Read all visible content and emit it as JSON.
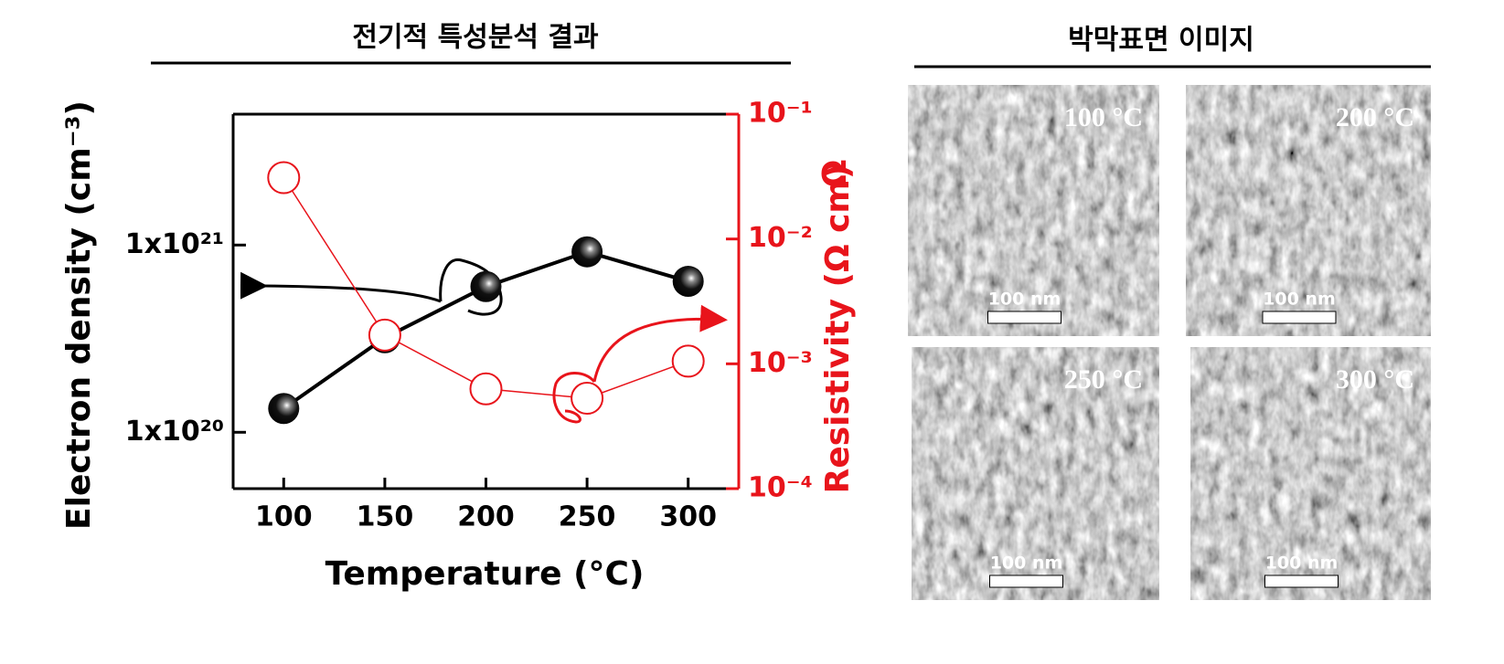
{
  "chart_data": {
    "type": "line",
    "title": "전기적 특성분석 결과",
    "x": [
      100,
      150,
      200,
      250,
      300
    ],
    "xlabel": "Temperature (°C)",
    "ylabel": "Electron density (cm⁻³)",
    "y2label": "Resistivity (Ω cm)",
    "annotations": [
      "Ω"
    ],
    "series": [
      {
        "name": "Electron density",
        "color": "#000000",
        "values": [
          1.34e+20,
          3.2e+20,
          6e+20,
          9.2e+20,
          6.4e+20
        ]
      },
      {
        "name": "Resistivity",
        "color": "#e8141b",
        "axis": "y2",
        "values": [
          0.031,
          0.0017,
          0.00063,
          0.00053,
          0.00105
        ]
      }
    ],
    "xlim": [
      75,
      325
    ],
    "xticks": [
      100,
      150,
      200,
      250,
      300
    ],
    "ylim": [
      5e+19,
      5e+21
    ],
    "ylog": true,
    "yticks": [
      {
        "value": 1e+20,
        "label": "1x10²⁰"
      },
      {
        "value": 1e+21,
        "label": "1x10²¹"
      }
    ],
    "y2lim": [
      0.0001,
      0.1
    ],
    "y2log": true,
    "y2ticks": [
      {
        "value": 0.0001,
        "label": "10⁻⁴"
      },
      {
        "value": 0.001,
        "label": "10⁻³"
      },
      {
        "value": 0.01,
        "label": "10⁻²"
      },
      {
        "value": 0.1,
        "label": "10⁻¹"
      }
    ]
  },
  "sem": {
    "title": "박막표면 이미지",
    "images": [
      {
        "label": "100 °C",
        "scale": "100 nm"
      },
      {
        "label": "200 °C",
        "scale": "100 nm"
      },
      {
        "label": "250 °C",
        "scale": "100 nm"
      },
      {
        "label": "300 °C",
        "scale": "100 nm"
      }
    ]
  }
}
